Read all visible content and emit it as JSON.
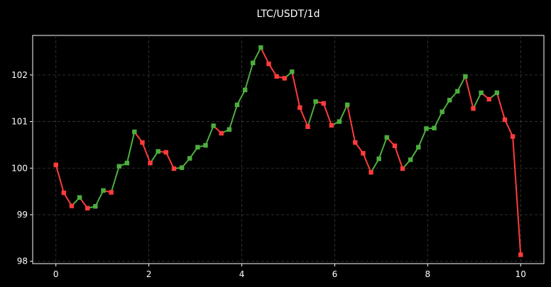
{
  "chart_data": {
    "type": "line",
    "title": "LTC/USDT/1d",
    "xlabel": "",
    "ylabel": "",
    "xlim": [
      -0.5,
      10.5
    ],
    "ylim": [
      97.95,
      102.85
    ],
    "xticks": [
      0,
      2,
      4,
      6,
      8,
      10
    ],
    "yticks": [
      98,
      99,
      100,
      101,
      102
    ],
    "grid": true,
    "colors": {
      "up": "#4caf3d",
      "down": "#ff3b3b",
      "background": "#000000",
      "text": "#ffffff"
    },
    "x": [
      0,
      0.17,
      0.34,
      0.51,
      0.68,
      0.85,
      1.02,
      1.19,
      1.36,
      1.53,
      1.69,
      1.86,
      2.03,
      2.2,
      2.37,
      2.54,
      2.71,
      2.88,
      3.05,
      3.22,
      3.39,
      3.56,
      3.73,
      3.9,
      4.07,
      4.24,
      4.41,
      4.58,
      4.75,
      4.92,
      5.08,
      5.25,
      5.42,
      5.59,
      5.76,
      5.93,
      6.1,
      6.27,
      6.44,
      6.61,
      6.78,
      6.95,
      7.12,
      7.29,
      7.46,
      7.63,
      7.8,
      7.97,
      8.14,
      8.31,
      8.47,
      8.64,
      8.81,
      8.98,
      9.15,
      9.32,
      9.49,
      9.66,
      9.83,
      10.0
    ],
    "values": [
      100.07,
      99.47,
      99.19,
      99.37,
      99.14,
      99.18,
      99.52,
      99.48,
      100.04,
      100.11,
      100.78,
      100.55,
      100.11,
      100.36,
      100.34,
      99.99,
      100.01,
      100.21,
      100.45,
      100.49,
      100.91,
      100.75,
      100.83,
      101.36,
      101.68,
      102.26,
      102.59,
      102.24,
      101.97,
      101.93,
      102.07,
      101.3,
      100.89,
      101.43,
      101.39,
      100.92,
      101.0,
      101.36,
      100.55,
      100.32,
      99.91,
      100.2,
      100.66,
      100.48,
      99.99,
      100.18,
      100.45,
      100.85,
      100.86,
      101.21,
      101.46,
      101.65,
      101.97,
      101.28,
      101.62,
      101.48,
      101.62,
      101.04,
      100.68,
      98.14
    ]
  }
}
